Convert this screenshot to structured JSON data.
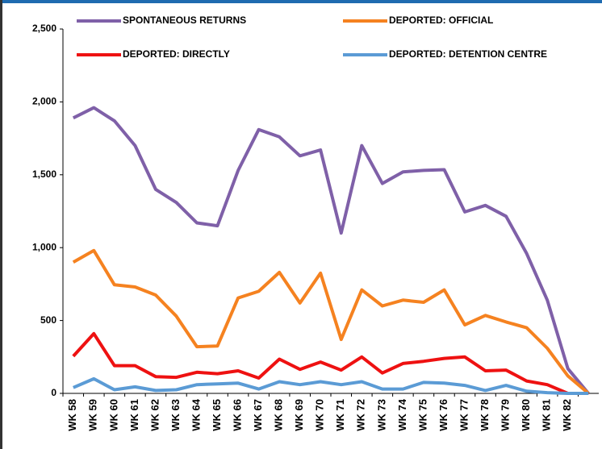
{
  "chart_data": {
    "type": "line",
    "categories": [
      "WK 58",
      "WK 59",
      "WK 60",
      "WK 61",
      "WK 62",
      "WK 63",
      "WK 64",
      "WK 65",
      "WK 66",
      "WK 67",
      "WK 68",
      "WK 69",
      "WK 70",
      "WK 71",
      "WK 72",
      "WK 73",
      "WK 74",
      "WK 75",
      "WK 76",
      "WK 77",
      "WK 78",
      "WK 79",
      "WK 80",
      "WK 81",
      "WK 82",
      null
    ],
    "series": [
      {
        "name": "SPONTANEOUS RETURNS",
        "color": "#7f60a8",
        "values": [
          1890,
          1960,
          1870,
          1700,
          1400,
          1310,
          1170,
          1150,
          1530,
          1810,
          1760,
          1630,
          1670,
          1100,
          1700,
          1440,
          1520,
          1530,
          1535,
          1245,
          1290,
          1215,
          960,
          640,
          170,
          0
        ]
      },
      {
        "name": "DEPORTED: OFFICIAL",
        "color": "#f58220",
        "values": [
          900,
          980,
          745,
          730,
          675,
          530,
          320,
          325,
          655,
          700,
          830,
          620,
          825,
          370,
          710,
          600,
          640,
          625,
          710,
          470,
          535,
          490,
          450,
          310,
          120,
          0
        ]
      },
      {
        "name": "DEPORTED: DIRECTLY",
        "color": "#ee1111",
        "values": [
          255,
          410,
          190,
          190,
          115,
          110,
          145,
          135,
          155,
          105,
          235,
          165,
          215,
          160,
          250,
          140,
          205,
          220,
          240,
          250,
          155,
          160,
          85,
          60,
          0,
          0
        ]
      },
      {
        "name": "DEPORTED: DETENTION CENTRE",
        "color": "#5b9bd5",
        "values": [
          40,
          100,
          25,
          45,
          20,
          25,
          60,
          65,
          70,
          30,
          80,
          60,
          80,
          60,
          80,
          30,
          30,
          75,
          70,
          55,
          20,
          55,
          15,
          5,
          0,
          0
        ]
      }
    ],
    "ylim": [
      0,
      2500
    ],
    "yticks": [
      0,
      {
        "value": 500,
        "label": "500"
      },
      {
        "value": 1000,
        "label": "1,000"
      },
      {
        "value": 1500,
        "label": "1,500"
      },
      {
        "value": 2000,
        "label": "2,000"
      },
      {
        "value": 2500,
        "label": "2,500"
      }
    ]
  }
}
